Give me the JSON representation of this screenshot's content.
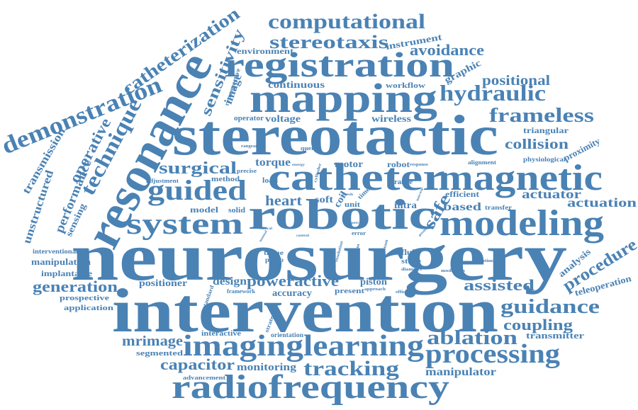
{
  "colors": {
    "word": "#4a82b4",
    "background": "#ffffff"
  },
  "words": {
    "neurosurgery": "neurosurgery",
    "intervention": "intervention",
    "stereotactic": "stereotactic",
    "resonance": "resonance",
    "robotic": "robotic",
    "catheter": "catheter",
    "mapping": "mapping",
    "registration": "registration",
    "magnetic": "magnetic",
    "modeling": "modeling",
    "radiofrequency": "radiofrequency",
    "imaging": "imaging",
    "learning": "learning",
    "system": "system",
    "guided": "guided",
    "processing": "processing",
    "demonstration": "demonstration",
    "technique": "technique",
    "computational": "computational",
    "stereotaxis": "stereotaxis",
    "hydraulic": "hydraulic",
    "frameless": "frameless",
    "tracking": "tracking",
    "ablation": "ablation",
    "guidance": "guidance",
    "procedure": "procedure",
    "catheterization": "catheterization",
    "sensitivity": "sensitivity",
    "operative": "operative",
    "performance": "performance",
    "transmission": "transmission",
    "surgical": "surgical",
    "generation": "generation",
    "capacitor": "capacitor",
    "mrimage": "mrimage",
    "avoidance": "avoidance",
    "positional": "positional",
    "collision": "collision",
    "actuator": "actuator",
    "actuation": "actuation",
    "heart": "heart",
    "safe": "safe",
    "based": "based",
    "assisted": "assisted",
    "coupling": "coupling",
    "design": "design",
    "poweractive": "poweractive",
    "torque": "torque",
    "monitoring": "monitoring",
    "manipulator": "manipulator",
    "transmitter": "transmitter",
    "teleoperation": "teleoperation",
    "analysis": "analysis",
    "unstructured": "unstructured",
    "sensing": "sensing",
    "graphic": "graphic",
    "instrument": "instrument",
    "environment": "environment",
    "continuous": "continuous",
    "workflow": "workflow",
    "image": "image",
    "retrospective": "retrospective",
    "operator": "operator",
    "voltage": "voltage",
    "wireless": "wireless",
    "triangular": "triangular",
    "physiological": "physiological",
    "proximity": "proximity",
    "alignment": "alignment",
    "response": "response",
    "motor": "motor",
    "robot": "robot",
    "load": "load",
    "method": "method",
    "precise": "precise",
    "adjustment": "adjustment",
    "rangeand": "rangeand",
    "query": "query",
    "energy": "energy",
    "cylinder": "cylinder",
    "range": "range",
    "intrasp": "intrasp",
    "efficient": "efficient",
    "transfer": "transfer",
    "soft": "soft",
    "coil": "coil",
    "unit": "unit",
    "time": "time",
    "mesh": "mesh",
    "intra": "intra",
    "model": "model",
    "solid": "solid",
    "interventional": "interventional",
    "manipulation": "manipulation",
    "implantable": "implantable",
    "positioner": "positioner",
    "prospective": "prospective",
    "application": "application",
    "tissue": "tissue",
    "pump": "pump",
    "error": "error",
    "fluid": "fluid",
    "stage": "stage",
    "diameter": "diameter",
    "modalities": "modalities",
    "optimized": "optimized",
    "piston": "piston",
    "present": "present",
    "accuracy": "accuracy",
    "framework": "framework",
    "approach": "approach",
    "efficiency": "efficiency",
    "standard": "standard",
    "strategy": "strategy",
    "interactive": "interactive",
    "orientation": "orientation",
    "segmented": "segmented",
    "advancement": "advancement",
    "resolution": "resolution",
    "platform": "platform",
    "phantom": "phantom",
    "control": "control",
    "clinical": "clinical",
    "position": "position",
    "manual": "manual",
    "expert": "expert"
  }
}
